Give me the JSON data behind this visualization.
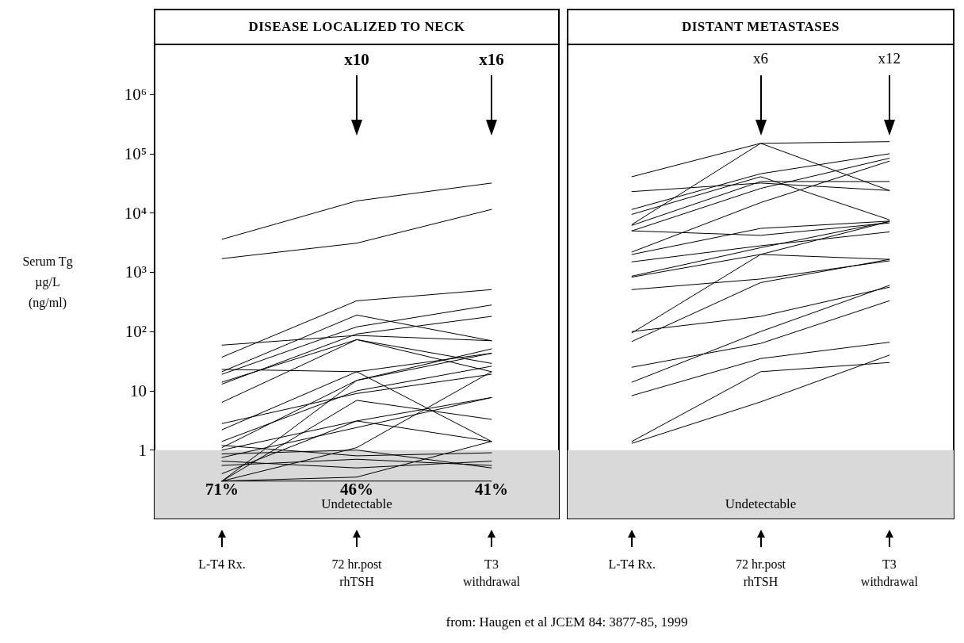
{
  "chart_data": [
    {
      "type": "line",
      "title": "DISEASE LOCALIZED TO NECK",
      "ylabel": "Serum Tg\nµg/L\n(ng/ml)",
      "categories": [
        "L-T4 Rx.",
        "72 hr.post\nrhTSH",
        "T3\nwithdrawal"
      ],
      "log": "y",
      "ylim": [
        0.07,
        7000000
      ],
      "yticks": [
        1,
        10,
        {
          "value": 100,
          "label": "10²"
        },
        {
          "value": 1000,
          "label": "10³"
        },
        {
          "value": 10000,
          "label": "10⁴"
        },
        {
          "value": 100000,
          "label": "10⁵"
        },
        {
          "value": 1000000,
          "label": "10⁶"
        }
      ],
      "grid": false,
      "marker": "none",
      "line_style": "solid",
      "series": [
        {
          "color": "#000000",
          "values": [
            3600,
            16000,
            32000
          ]
        },
        {
          "color": "#000000",
          "values": [
            1700,
            3100,
            11500
          ]
        },
        {
          "color": "#000000",
          "values": [
            59,
            86,
            70
          ]
        },
        {
          "color": "#000000",
          "values": [
            37,
            330,
            510
          ]
        },
        {
          "color": "#000000",
          "values": [
            23,
            21,
            1.4
          ]
        },
        {
          "color": "#000000",
          "values": [
            21,
            190,
            70
          ]
        },
        {
          "color": "#000000",
          "values": [
            19,
            120,
            280
          ]
        },
        {
          "color": "#000000",
          "values": [
            13,
            91,
            180
          ]
        },
        {
          "color": "#000000",
          "values": [
            14,
            73,
            29
          ]
        },
        {
          "color": "#000000",
          "values": [
            6.4,
            73,
            21
          ]
        },
        {
          "color": "#000000",
          "values": [
            2.8,
            9,
            19
          ]
        },
        {
          "color": "#000000",
          "values": [
            2.2,
            21,
            43
          ]
        },
        {
          "color": "#000000",
          "values": [
            1.1,
            15,
            51
          ]
        },
        {
          "color": "#000000",
          "values": [
            1,
            3.1,
            7.7
          ]
        },
        {
          "color": "#000000",
          "values": [
            1.4,
            10,
            26
          ]
        },
        {
          "color": "#000000",
          "values": [
            0.4,
            3.1,
            1.4
          ]
        },
        {
          "color": "#000000",
          "values": [
            0.3,
            1.1,
            21
          ]
        },
        {
          "color": "#000000",
          "values": [
            0.3,
            15,
            43
          ]
        },
        {
          "color": "#000000",
          "values": [
            0.3,
            0.35,
            1.4
          ]
        },
        {
          "color": "#000000",
          "values": [
            0.65,
            0.5,
            0.65
          ]
        },
        {
          "color": "#000000",
          "values": [
            0.86,
            1,
            0.5
          ]
        },
        {
          "color": "#000000",
          "values": [
            0.3,
            0.3,
            0.3
          ]
        },
        {
          "color": "#000000",
          "values": [
            0.55,
            0.7,
            0.55
          ]
        },
        {
          "color": "#000000",
          "values": [
            0.3,
            6.9,
            3.3
          ]
        },
        {
          "color": "#000000",
          "values": [
            0.75,
            2.4,
            7.7
          ]
        },
        {
          "color": "#000000",
          "values": [
            1.2,
            0.8,
            0.9
          ]
        }
      ],
      "bands": [
        {
          "axis": "y",
          "from": 0.07,
          "to": 1,
          "label": "Undetectable",
          "color": "#d9d9d9"
        }
      ],
      "annotations": [
        "x10",
        "x16",
        "71%",
        "46%",
        "41%"
      ]
    },
    {
      "type": "line",
      "title": "DISTANT METASTASES",
      "categories": [
        "L-T4 Rx.",
        "72 hr.post\nrhTSH",
        "T3\nwithdrawal"
      ],
      "log": "y",
      "ylim": [
        0.07,
        7000000
      ],
      "tick_labels": "x",
      "grid": false,
      "marker": "none",
      "line_style": "solid",
      "series": [
        {
          "color": "#000000",
          "values": [
            41000,
            150000,
            160000
          ]
        },
        {
          "color": "#000000",
          "values": [
            6400,
            150000,
            24000
          ]
        },
        {
          "color": "#000000",
          "values": [
            23000,
            32000,
            24000
          ]
        },
        {
          "color": "#000000",
          "values": [
            11500,
            46000,
            100000
          ]
        },
        {
          "color": "#000000",
          "values": [
            9500,
            41000,
            7700
          ]
        },
        {
          "color": "#000000",
          "values": [
            6200,
            34000,
            34000
          ]
        },
        {
          "color": "#000000",
          "values": [
            5000,
            4200,
            6800
          ]
        },
        {
          "color": "#000000",
          "values": [
            5000,
            26000,
            84000
          ]
        },
        {
          "color": "#000000",
          "values": [
            2200,
            15000,
            75000
          ]
        },
        {
          "color": "#000000",
          "values": [
            2000,
            5500,
            7300
          ]
        },
        {
          "color": "#000000",
          "values": [
            1500,
            2800,
            4800
          ]
        },
        {
          "color": "#000000",
          "values": [
            830,
            2000,
            1650
          ]
        },
        {
          "color": "#000000",
          "values": [
            860,
            2600,
            7200
          ]
        },
        {
          "color": "#000000",
          "values": [
            510,
            770,
            1560
          ]
        },
        {
          "color": "#000000",
          "values": [
            95,
            2000,
            7200
          ]
        },
        {
          "color": "#000000",
          "values": [
            68,
            670,
            1650
          ]
        },
        {
          "color": "#000000",
          "values": [
            100,
            180,
            560
          ]
        },
        {
          "color": "#000000",
          "values": [
            25,
            63,
            330
          ]
        },
        {
          "color": "#000000",
          "values": [
            14,
            100,
            600
          ]
        },
        {
          "color": "#000000",
          "values": [
            8.3,
            35,
            66
          ]
        },
        {
          "color": "#000000",
          "values": [
            1.4,
            21,
            30
          ]
        },
        {
          "color": "#000000",
          "values": [
            1.3,
            6.5,
            40
          ]
        }
      ],
      "bands": [
        {
          "axis": "y",
          "from": 0.07,
          "to": 1,
          "label": "Undetectable",
          "color": "#d9d9d9"
        }
      ],
      "annotations": [
        "x6",
        "x12",
        "from: Haugen et al JCEM 84: 3877-85, 1999"
      ]
    }
  ]
}
